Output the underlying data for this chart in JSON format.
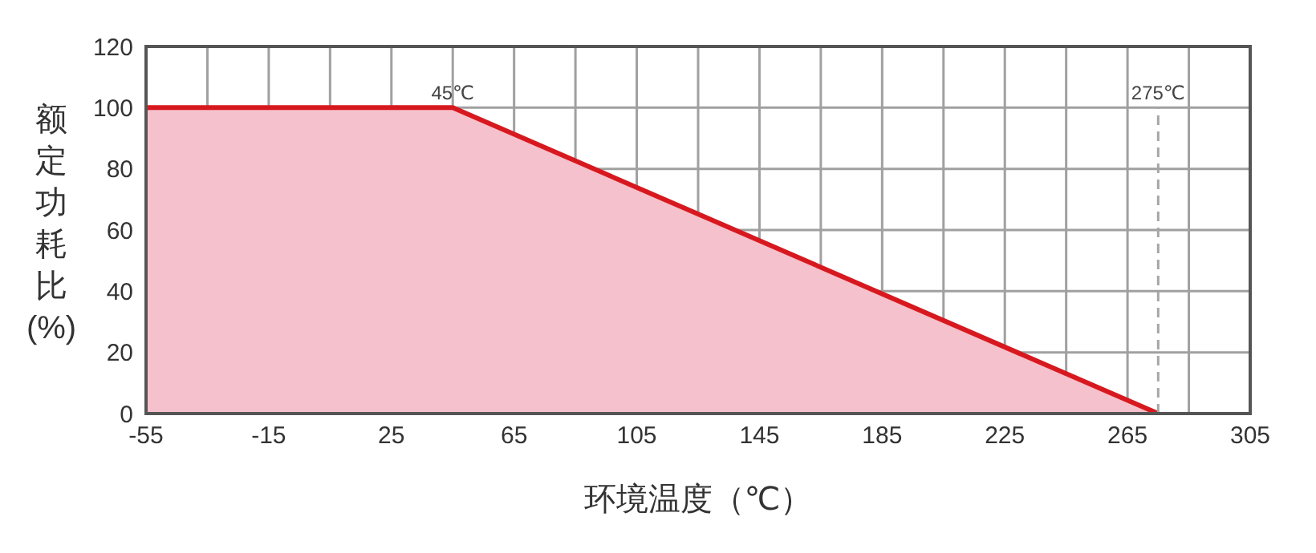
{
  "chart_data": {
    "type": "area",
    "xlabel": "环境温度（℃）",
    "ylabel": "额定功耗比(%)",
    "x": [
      -55,
      45,
      275
    ],
    "series": [
      {
        "color": "#d7191f",
        "values": [
          100,
          100,
          0
        ]
      }
    ],
    "xlim": [
      -55,
      305
    ],
    "xticks": [
      -55,
      {
        "value": -35,
        "label": null
      },
      -15,
      {
        "value": 5,
        "label": null
      },
      25,
      {
        "value": 45,
        "label": null
      },
      65,
      {
        "value": 85,
        "label": null
      },
      105,
      {
        "value": 125,
        "label": null
      },
      145,
      {
        "value": 165,
        "label": null
      },
      185,
      {
        "value": 205,
        "label": null
      },
      225,
      {
        "value": 245,
        "label": null
      },
      265,
      {
        "value": 285,
        "label": null
      },
      305
    ],
    "ylim": [
      0,
      120
    ],
    "yticks": [
      0,
      20,
      40,
      60,
      80,
      100,
      120
    ],
    "grid": true,
    "ref_lines": [
      {
        "axis": "x",
        "value": 275,
        "label": "275℃",
        "color": "#a6a6a6",
        "line_style": "dashed"
      }
    ],
    "annotations": [
      {
        "text": "45℃",
        "x": 45,
        "y": 100
      }
    ]
  }
}
